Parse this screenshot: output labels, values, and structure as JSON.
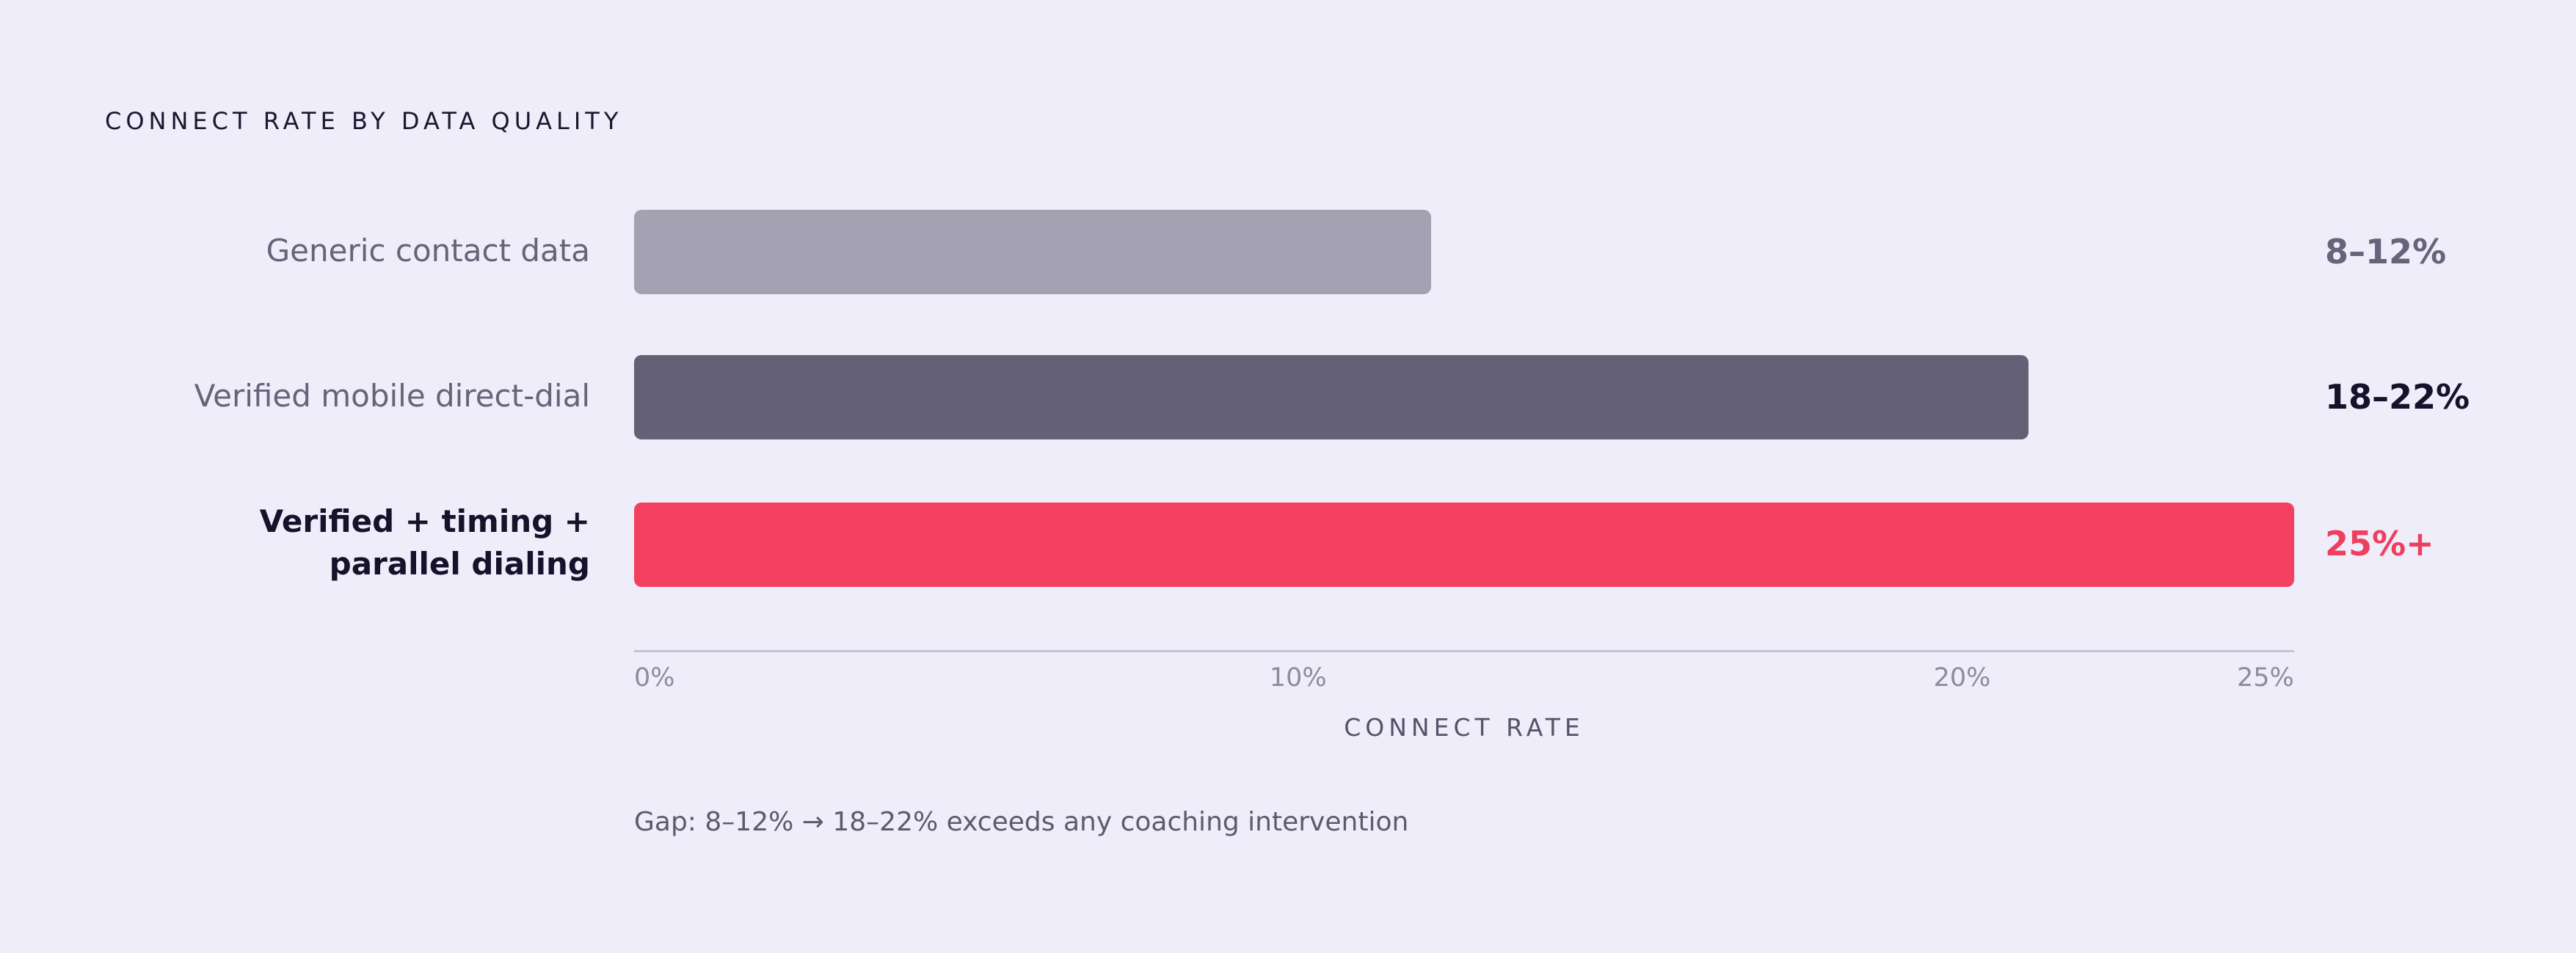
{
  "chart_data": {
    "type": "bar",
    "orientation": "horizontal",
    "title": "CONNECT RATE BY DATA QUALITY",
    "xlabel": "CONNECT RATE",
    "xlim": [
      0,
      25
    ],
    "ticks": [
      {
        "value": 0,
        "label": "0%"
      },
      {
        "value": 10,
        "label": "10%"
      },
      {
        "value": 20,
        "label": "20%"
      },
      {
        "value": 25,
        "label": "25%"
      }
    ],
    "bars": [
      {
        "category": "Generic contact data",
        "value": 12,
        "value_label": "8–12%",
        "color": "#a4a1b2",
        "label_color": "#66637a",
        "highlight": false
      },
      {
        "category": "Verified mobile direct-dial",
        "value": 21,
        "value_label": "18–22%",
        "color": "#646176",
        "label_color": "#15132b",
        "highlight": false
      },
      {
        "category": "Verified + timing + parallel dialing",
        "value": 25,
        "value_label": "25%+",
        "color": "#f34061",
        "label_color": "#ee3f5f",
        "highlight": true
      }
    ],
    "annotation": "Gap: 8–12% → 18–22% exceeds any coaching intervention"
  }
}
